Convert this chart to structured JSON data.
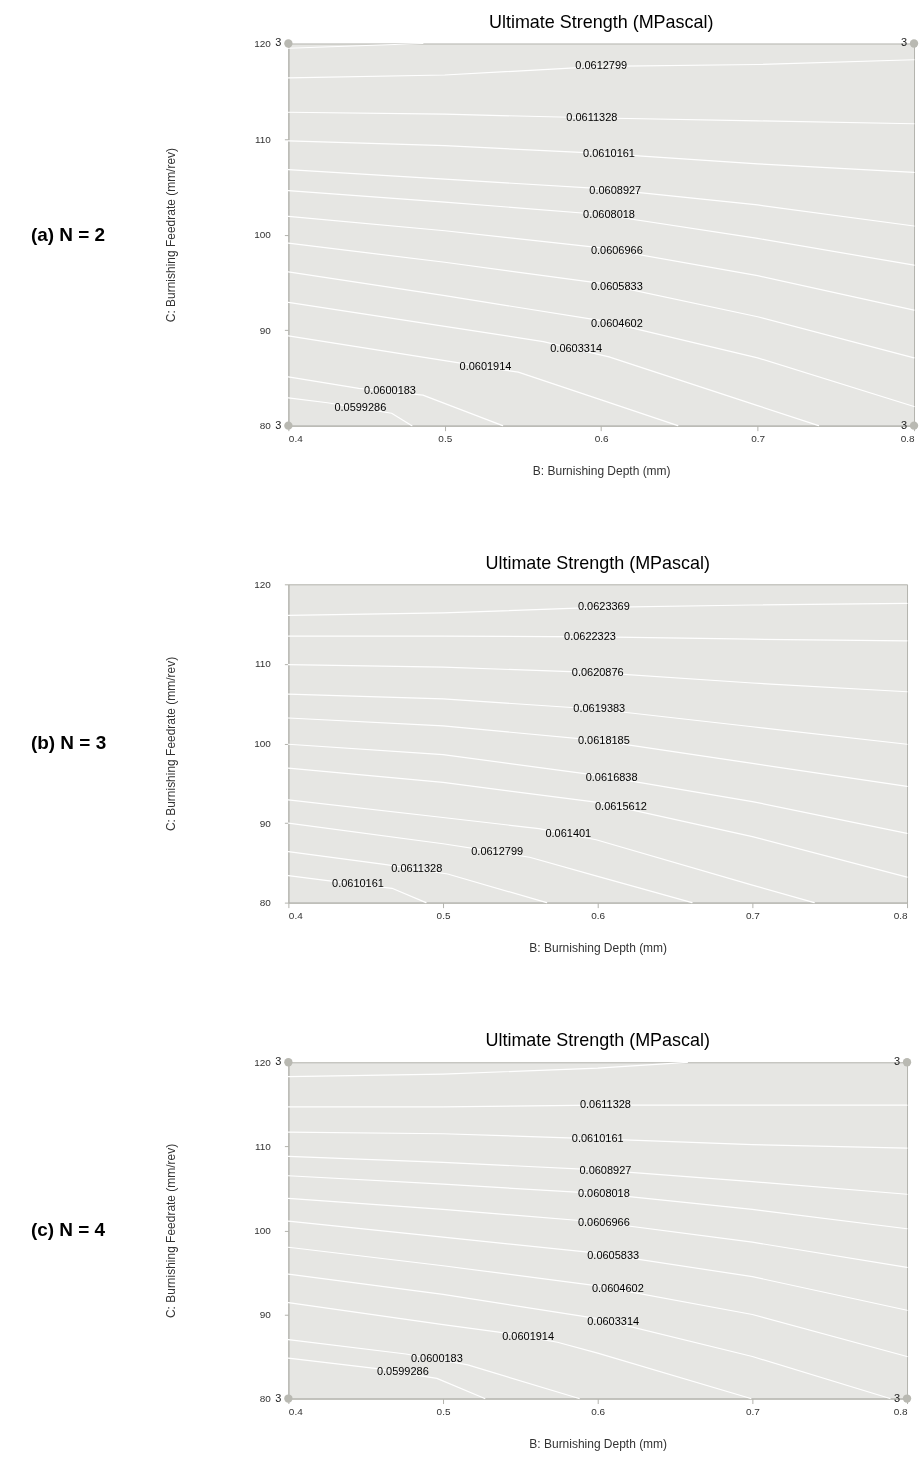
{
  "chart_data": [
    {
      "type": "line",
      "title": "Ultimate Strength (MPascal)",
      "xlabel": "B: Burnishing Depth (mm)",
      "ylabel": "C: Burnishing Feedrate (mm/rev)",
      "xlim": [
        0.4,
        0.8
      ],
      "ylim": [
        80,
        120
      ],
      "xticks": [
        0.4,
        0.5,
        0.6,
        0.7,
        0.8
      ],
      "yticks": [
        80,
        90,
        100,
        110,
        120
      ],
      "series": [
        {
          "color": "#ffffff",
          "x": [
            0.4,
            0.486
          ],
          "values": [
            119.5,
            120
          ]
        },
        {
          "color": "#ffffff",
          "x": [
            0.4,
            0.5,
            0.6,
            0.7,
            0.8
          ],
          "values": [
            116.4,
            116.7,
            117.6,
            117.8,
            118.3
          ]
        },
        {
          "color": "#ffffff",
          "x": [
            0.4,
            0.5,
            0.6,
            0.7,
            0.8
          ],
          "values": [
            112.8,
            112.6,
            112.2,
            111.9,
            111.6
          ]
        },
        {
          "color": "#ffffff",
          "x": [
            0.4,
            0.5,
            0.6,
            0.7,
            0.8
          ],
          "values": [
            109.8,
            109.3,
            108.5,
            107.4,
            106.5
          ]
        },
        {
          "color": "#ffffff",
          "x": [
            0.4,
            0.5,
            0.6,
            0.7,
            0.8
          ],
          "values": [
            106.8,
            105.8,
            104.8,
            103.1,
            100.9
          ]
        },
        {
          "color": "#ffffff",
          "x": [
            0.4,
            0.5,
            0.6,
            0.7,
            0.8
          ],
          "values": [
            104.6,
            103.4,
            102.1,
            99.6,
            96.8
          ]
        },
        {
          "color": "#ffffff",
          "x": [
            0.4,
            0.5,
            0.6,
            0.7,
            0.8
          ],
          "values": [
            101.9,
            100.4,
            98.6,
            95.7,
            92.1
          ]
        },
        {
          "color": "#ffffff",
          "x": [
            0.4,
            0.5,
            0.6,
            0.7,
            0.8
          ],
          "values": [
            99.1,
            97.1,
            94.9,
            91.4,
            87.1
          ]
        },
        {
          "color": "#ffffff",
          "x": [
            0.4,
            0.5,
            0.6,
            0.7,
            0.8
          ],
          "values": [
            96.1,
            93.6,
            91.0,
            87.1,
            82.0
          ]
        },
        {
          "color": "#ffffff",
          "x": [
            0.4,
            0.5,
            0.563,
            0.605,
            0.7,
            0.739
          ],
          "values": [
            92.9,
            90.4,
            88.8,
            87.2,
            82.1,
            80
          ]
        },
        {
          "color": "#ffffff",
          "x": [
            0.4,
            0.504,
            0.547,
            0.6,
            0.649
          ],
          "values": [
            89.4,
            86.7,
            85.6,
            82.7,
            80
          ]
        },
        {
          "color": "#ffffff",
          "x": [
            0.4,
            0.445,
            0.486,
            0.537
          ],
          "values": [
            85.1,
            83.9,
            83.2,
            80
          ]
        },
        {
          "color": "#ffffff",
          "x": [
            0.4,
            0.425,
            0.466,
            0.479
          ],
          "values": [
            82.9,
            82.4,
            81.3,
            80
          ]
        },
        {
          "type": "scatter",
          "marker": "circle",
          "color": "#b9b9b2",
          "x": [
            0.4,
            0.8,
            0.4,
            0.8
          ],
          "values": [
            120,
            120,
            80,
            80
          ]
        }
      ],
      "annotations": [
        "(a) N = 2",
        {
          "text": "3",
          "x": 0.4,
          "y": 120
        },
        {
          "text": "3",
          "x": 0.8,
          "y": 120
        },
        {
          "text": "3",
          "x": 0.4,
          "y": 80
        },
        {
          "text": "3",
          "x": 0.8,
          "y": 80
        },
        {
          "text": "0.0612799",
          "x": 0.6,
          "y": 117.6
        },
        {
          "text": "0.0611328",
          "x": 0.594,
          "y": 112.2
        },
        {
          "text": "0.0610161",
          "x": 0.605,
          "y": 108.4
        },
        {
          "text": "0.0608927",
          "x": 0.609,
          "y": 104.6
        },
        {
          "text": "0.0608018",
          "x": 0.605,
          "y": 102.0
        },
        {
          "text": "0.0606966",
          "x": 0.61,
          "y": 98.3
        },
        {
          "text": "0.0605833",
          "x": 0.61,
          "y": 94.5
        },
        {
          "text": "0.0604602",
          "x": 0.61,
          "y": 90.6
        },
        {
          "text": "0.0603314",
          "x": 0.584,
          "y": 88.0
        },
        {
          "text": "0.0601914",
          "x": 0.526,
          "y": 86.1
        },
        {
          "text": "0.0600183",
          "x": 0.465,
          "y": 83.6
        },
        {
          "text": "0.0599286",
          "x": 0.446,
          "y": 81.8
        }
      ]
    },
    {
      "type": "line",
      "title": "Ultimate Strength (MPascal)",
      "xlabel": "B: Burnishing Depth (mm)",
      "ylabel": "C: Burnishing Feedrate (mm/rev)",
      "xlim": [
        0.4,
        0.8
      ],
      "ylim": [
        80,
        120
      ],
      "xticks": [
        0.4,
        0.5,
        0.6,
        0.7,
        0.8
      ],
      "yticks": [
        80,
        90,
        100,
        110,
        120
      ],
      "series": [
        {
          "color": "#ffffff",
          "x": [
            0.4,
            0.5,
            0.6,
            0.7,
            0.8
          ],
          "values": [
            116.1,
            116.4,
            117.1,
            117.4,
            117.6
          ]
        },
        {
          "color": "#ffffff",
          "x": [
            0.4,
            0.5,
            0.6,
            0.7,
            0.8
          ],
          "values": [
            113.5,
            113.5,
            113.4,
            113.1,
            112.9
          ]
        },
        {
          "color": "#ffffff",
          "x": [
            0.4,
            0.5,
            0.6,
            0.7,
            0.8
          ],
          "values": [
            109.9,
            109.6,
            108.9,
            107.6,
            106.5
          ]
        },
        {
          "color": "#ffffff",
          "x": [
            0.4,
            0.5,
            0.6,
            0.7,
            0.8
          ],
          "values": [
            106.2,
            105.6,
            104.3,
            102.1,
            99.9
          ]
        },
        {
          "color": "#ffffff",
          "x": [
            0.4,
            0.5,
            0.6,
            0.7,
            0.8
          ],
          "values": [
            103.2,
            102.2,
            100.4,
            97.5,
            94.6
          ]
        },
        {
          "color": "#ffffff",
          "x": [
            0.4,
            0.5,
            0.6,
            0.7,
            0.8
          ],
          "values": [
            99.9,
            98.6,
            96.0,
            92.7,
            88.7
          ]
        },
        {
          "color": "#ffffff",
          "x": [
            0.4,
            0.5,
            0.6,
            0.7,
            0.8
          ],
          "values": [
            96.9,
            95.1,
            92.6,
            88.3,
            83.2
          ]
        },
        {
          "color": "#ffffff",
          "x": [
            0.4,
            0.5,
            0.562,
            0.599,
            0.7,
            0.74
          ],
          "values": [
            92.9,
            90.7,
            89.3,
            87.9,
            82.2,
            80
          ]
        },
        {
          "color": "#ffffff",
          "x": [
            0.4,
            0.5,
            0.556,
            0.6,
            0.661
          ],
          "values": [
            90.0,
            87.4,
            85.7,
            83.3,
            80
          ]
        },
        {
          "color": "#ffffff",
          "x": [
            0.4,
            0.462,
            0.503,
            0.567
          ],
          "values": [
            86.4,
            84.8,
            83.6,
            80
          ]
        },
        {
          "color": "#ffffff",
          "x": [
            0.4,
            0.424,
            0.467,
            0.489
          ],
          "values": [
            83.4,
            82.8,
            81.8,
            80
          ]
        }
      ],
      "annotations": [
        "(b) N = 3",
        {
          "text": "0.0623369",
          "x": 0.604,
          "y": 117.1
        },
        {
          "text": "0.0622323",
          "x": 0.595,
          "y": 113.4
        },
        {
          "text": "0.0620876",
          "x": 0.6,
          "y": 108.9
        },
        {
          "text": "0.0619383",
          "x": 0.601,
          "y": 104.3
        },
        {
          "text": "0.0618185",
          "x": 0.604,
          "y": 100.3
        },
        {
          "text": "0.0616838",
          "x": 0.609,
          "y": 95.7
        },
        {
          "text": "0.0615612",
          "x": 0.615,
          "y": 92.0
        },
        {
          "text": "0.061401",
          "x": 0.581,
          "y": 88.6
        },
        {
          "text": "0.0612799",
          "x": 0.535,
          "y": 86.3
        },
        {
          "text": "0.0611328",
          "x": 0.483,
          "y": 84.2
        },
        {
          "text": "0.0610161",
          "x": 0.445,
          "y": 82.3
        }
      ]
    },
    {
      "type": "line",
      "title": "Ultimate Strength (MPascal)",
      "xlabel": "B: Burnishing Depth (mm)",
      "ylabel": "C: Burnishing Feedrate (mm/rev)",
      "xlim": [
        0.4,
        0.8
      ],
      "ylim": [
        80,
        120
      ],
      "xticks": [
        0.4,
        0.5,
        0.6,
        0.7,
        0.8
      ],
      "yticks": [
        80,
        90,
        100,
        110,
        120
      ],
      "series": [
        {
          "color": "#ffffff",
          "x": [
            0.4,
            0.5,
            0.6,
            0.658
          ],
          "values": [
            118.3,
            118.6,
            119.3,
            120
          ]
        },
        {
          "color": "#ffffff",
          "x": [
            0.4,
            0.5,
            0.6,
            0.7,
            0.8
          ],
          "values": [
            114.7,
            114.7,
            114.9,
            114.9,
            114.9
          ]
        },
        {
          "color": "#ffffff",
          "x": [
            0.4,
            0.5,
            0.6,
            0.7,
            0.8
          ],
          "values": [
            111.7,
            111.5,
            110.9,
            110.2,
            109.8
          ]
        },
        {
          "color": "#ffffff",
          "x": [
            0.4,
            0.5,
            0.6,
            0.7,
            0.8
          ],
          "values": [
            108.8,
            108.1,
            107.2,
            105.8,
            104.3
          ]
        },
        {
          "color": "#ffffff",
          "x": [
            0.4,
            0.5,
            0.6,
            0.7,
            0.8
          ],
          "values": [
            106.5,
            105.5,
            104.4,
            102.5,
            100.2
          ]
        },
        {
          "color": "#ffffff",
          "x": [
            0.4,
            0.5,
            0.6,
            0.7,
            0.8
          ],
          "values": [
            103.8,
            102.5,
            101.0,
            98.6,
            95.6
          ]
        },
        {
          "color": "#ffffff",
          "x": [
            0.4,
            0.5,
            0.6,
            0.7,
            0.8
          ],
          "values": [
            101.1,
            99.2,
            97.3,
            94.5,
            90.5
          ]
        },
        {
          "color": "#ffffff",
          "x": [
            0.4,
            0.5,
            0.6,
            0.7,
            0.8
          ],
          "values": [
            98.0,
            95.8,
            93.4,
            90.0,
            85.0
          ]
        },
        {
          "color": "#ffffff",
          "x": [
            0.4,
            0.5,
            0.6,
            0.7,
            0.789
          ],
          "values": [
            94.8,
            92.4,
            89.5,
            85.0,
            80
          ]
        },
        {
          "color": "#ffffff",
          "x": [
            0.4,
            0.5,
            0.536,
            0.574,
            0.6,
            0.699
          ],
          "values": [
            91.4,
            88.8,
            87.9,
            86.7,
            85.4,
            80
          ]
        },
        {
          "color": "#ffffff",
          "x": [
            0.4,
            0.476,
            0.516,
            0.588
          ],
          "values": [
            87.0,
            85.3,
            84.0,
            80
          ]
        },
        {
          "color": "#ffffff",
          "x": [
            0.4,
            0.456,
            0.496,
            0.527
          ],
          "values": [
            84.8,
            83.6,
            82.4,
            80
          ]
        },
        {
          "type": "scatter",
          "marker": "circle",
          "color": "#b9b9b2",
          "x": [
            0.4,
            0.8,
            0.4,
            0.8
          ],
          "values": [
            120,
            120,
            80,
            80
          ]
        }
      ],
      "annotations": [
        "(c) N = 4",
        {
          "text": "3",
          "x": 0.4,
          "y": 120
        },
        {
          "text": "3",
          "x": 0.8,
          "y": 120
        },
        {
          "text": "3",
          "x": 0.4,
          "y": 80
        },
        {
          "text": "3",
          "x": 0.8,
          "y": 80
        },
        {
          "text": "0.0611328",
          "x": 0.605,
          "y": 114.9
        },
        {
          "text": "0.0610161",
          "x": 0.6,
          "y": 110.9
        },
        {
          "text": "0.0608927",
          "x": 0.605,
          "y": 107.1
        },
        {
          "text": "0.0608018",
          "x": 0.604,
          "y": 104.3
        },
        {
          "text": "0.0606966",
          "x": 0.604,
          "y": 100.9
        },
        {
          "text": "0.0605833",
          "x": 0.61,
          "y": 97.0
        },
        {
          "text": "0.0604602",
          "x": 0.613,
          "y": 93.0
        },
        {
          "text": "0.0603314",
          "x": 0.61,
          "y": 89.1
        },
        {
          "text": "0.0601914",
          "x": 0.555,
          "y": 87.3
        },
        {
          "text": "0.0600183",
          "x": 0.496,
          "y": 84.7
        },
        {
          "text": "0.0599286",
          "x": 0.474,
          "y": 83.1
        }
      ]
    }
  ]
}
